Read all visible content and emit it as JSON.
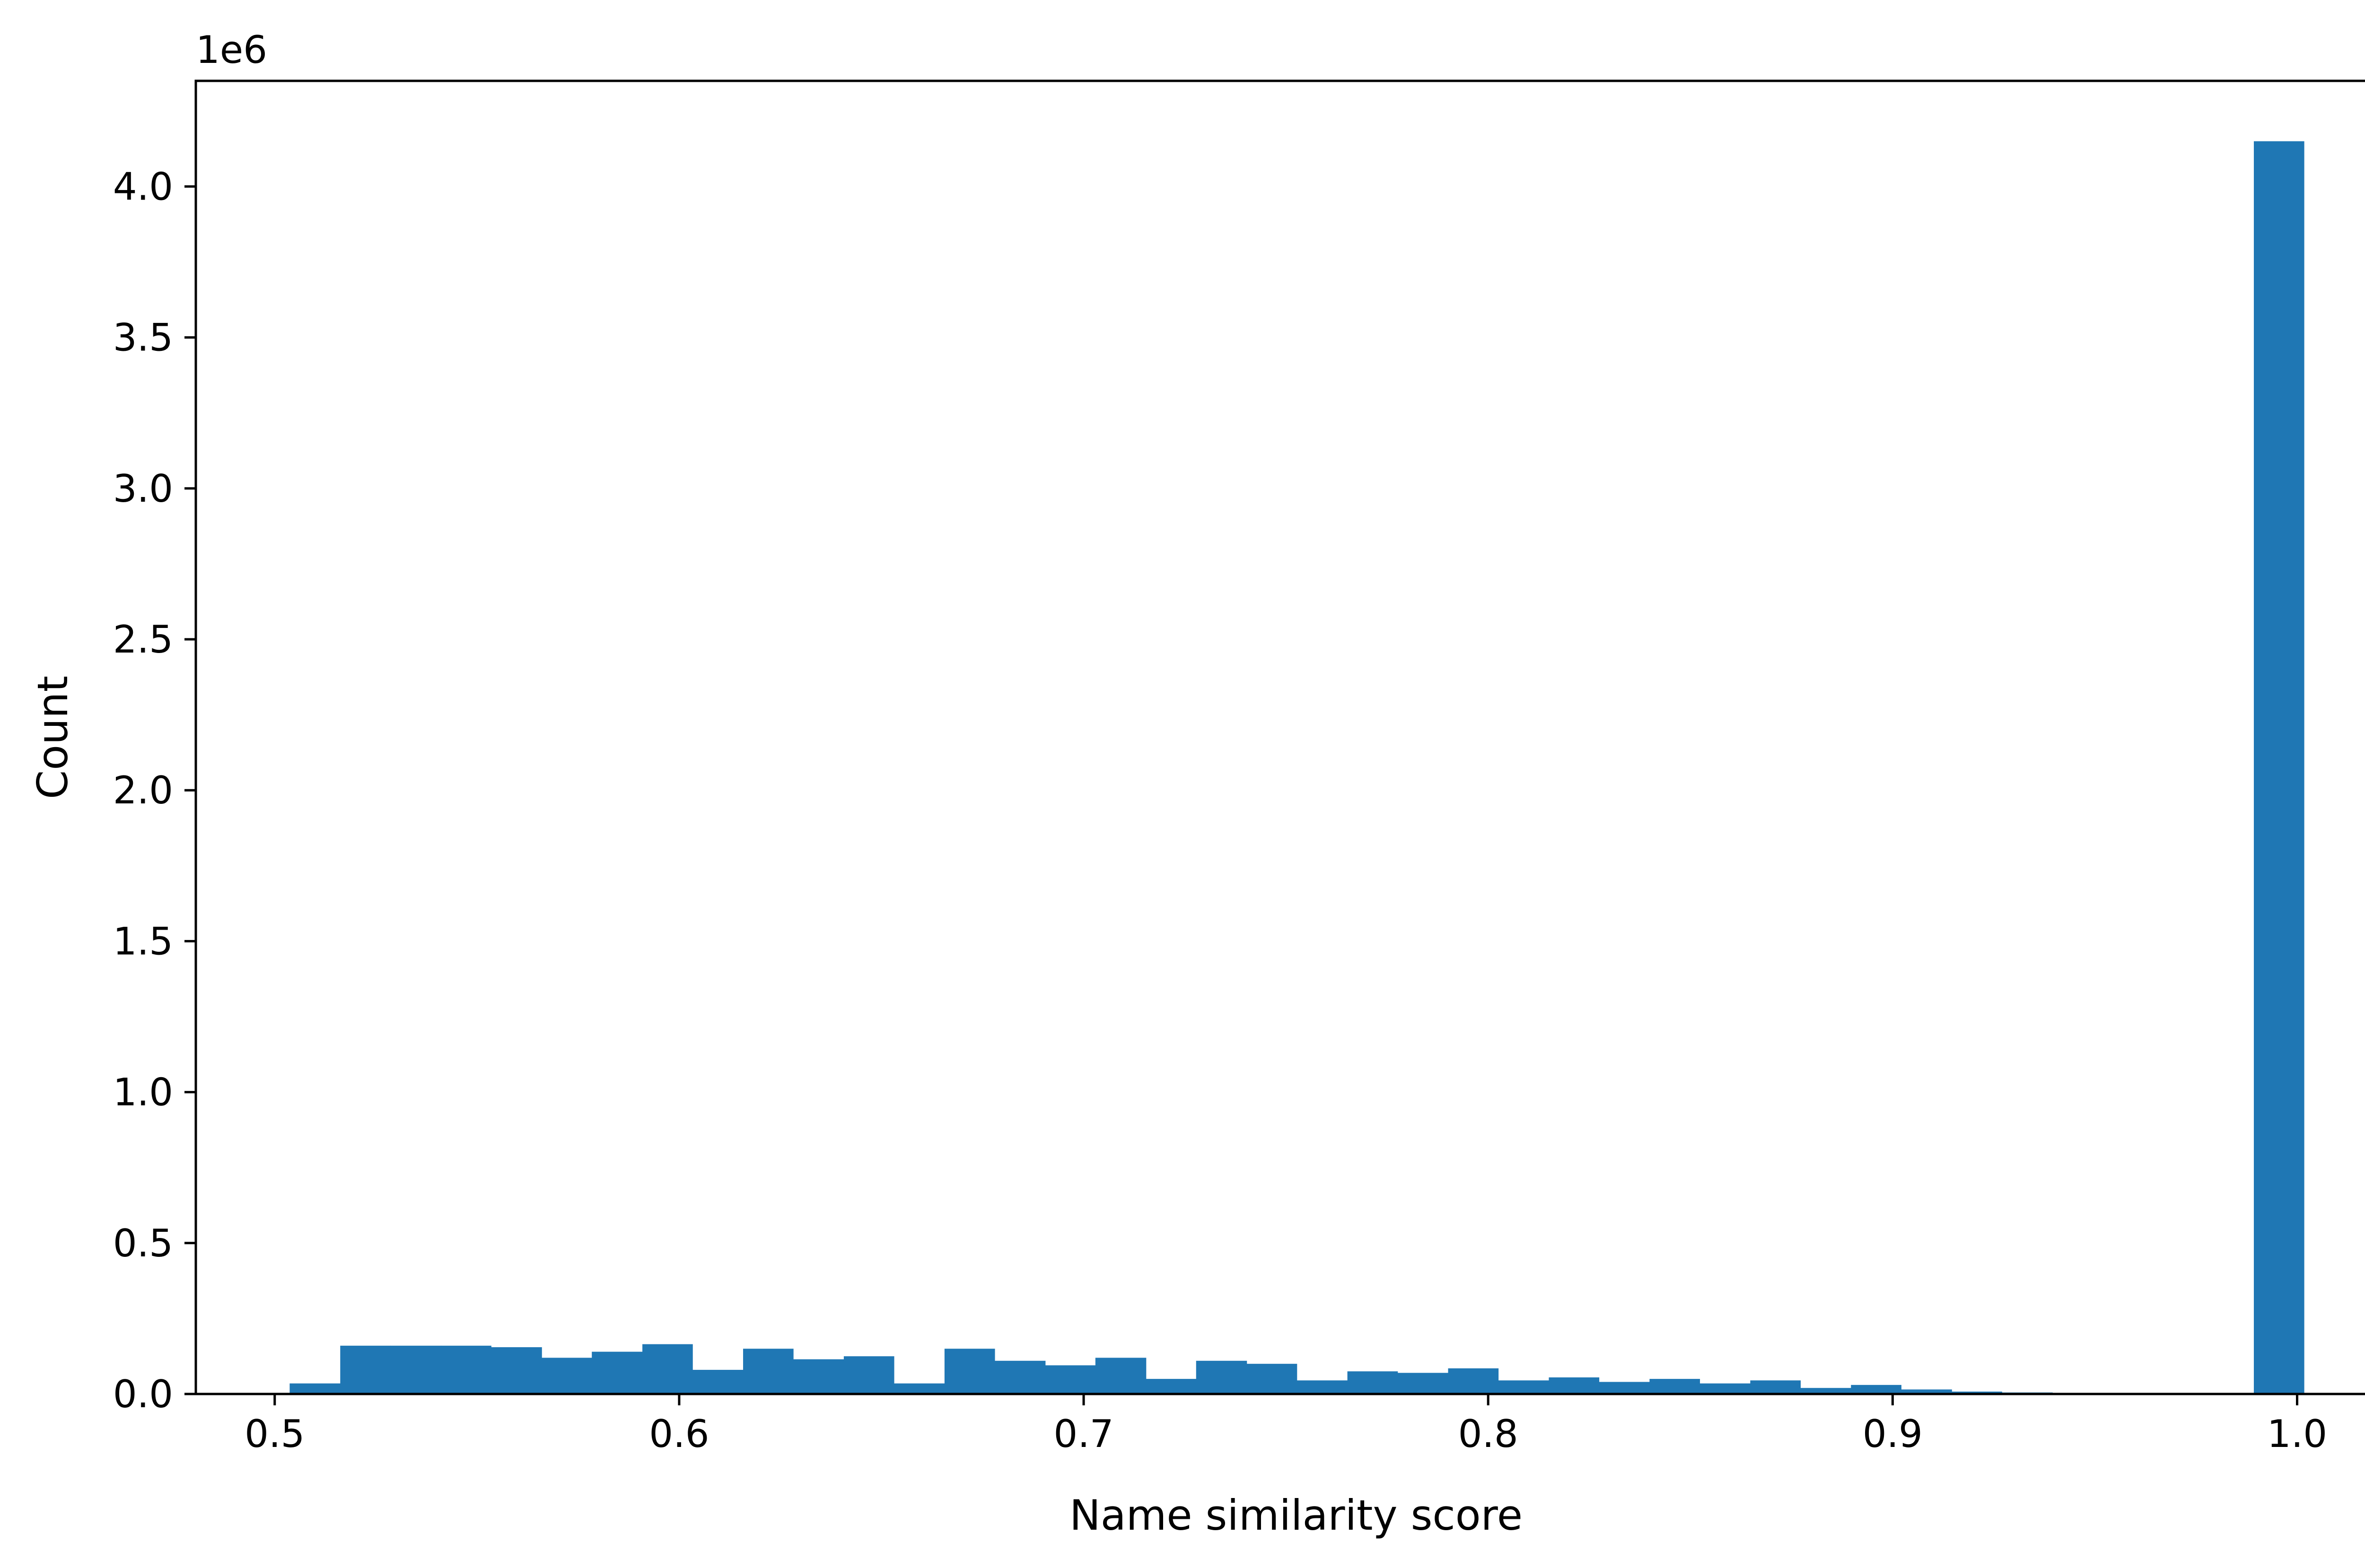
{
  "chart_data": {
    "type": "bar",
    "subtype": "histogram",
    "xlabel": "Name similarity score",
    "ylabel": "Count",
    "y_offset_label": "1e6",
    "y_scale": 1000000,
    "xlim": [
      0.4805,
      1.0245
    ],
    "ylim": [
      0,
      4350000
    ],
    "xticks": [
      0.5,
      0.6,
      0.7,
      0.8,
      0.9,
      1.0
    ],
    "xtick_labels": [
      "0.5",
      "0.6",
      "0.7",
      "0.8",
      "0.9",
      "1.0"
    ],
    "yticks": [
      0,
      500000,
      1000000,
      1500000,
      2000000,
      2500000,
      3000000,
      3500000,
      4000000
    ],
    "ytick_labels": [
      "0.0",
      "0.5",
      "1.0",
      "1.5",
      "2.0",
      "2.5",
      "3.0",
      "3.5",
      "4.0"
    ],
    "bin_edges": [
      0.5037,
      0.5162,
      0.5286,
      0.5411,
      0.5535,
      0.566,
      0.5784,
      0.5909,
      0.6033,
      0.6158,
      0.6282,
      0.6407,
      0.6531,
      0.6656,
      0.678,
      0.6905,
      0.7029,
      0.7154,
      0.7278,
      0.7403,
      0.7527,
      0.7652,
      0.7776,
      0.7901,
      0.8025,
      0.815,
      0.8274,
      0.8399,
      0.8523,
      0.8648,
      0.8772,
      0.8897,
      0.9021,
      0.9146,
      0.927,
      0.9395,
      0.9519,
      0.9644,
      0.9768,
      0.9893,
      1.0017
    ],
    "values": [
      35000,
      160000,
      160000,
      160000,
      155000,
      120000,
      140000,
      165000,
      80000,
      150000,
      115000,
      125000,
      35000,
      150000,
      110000,
      95000,
      120000,
      50000,
      110000,
      100000,
      45000,
      75000,
      70000,
      85000,
      45000,
      55000,
      40000,
      50000,
      35000,
      45000,
      20000,
      30000,
      15000,
      8000,
      5000,
      0,
      0,
      0,
      0,
      4150000
    ],
    "bar_color": "#1f77b4",
    "grid": false
  }
}
